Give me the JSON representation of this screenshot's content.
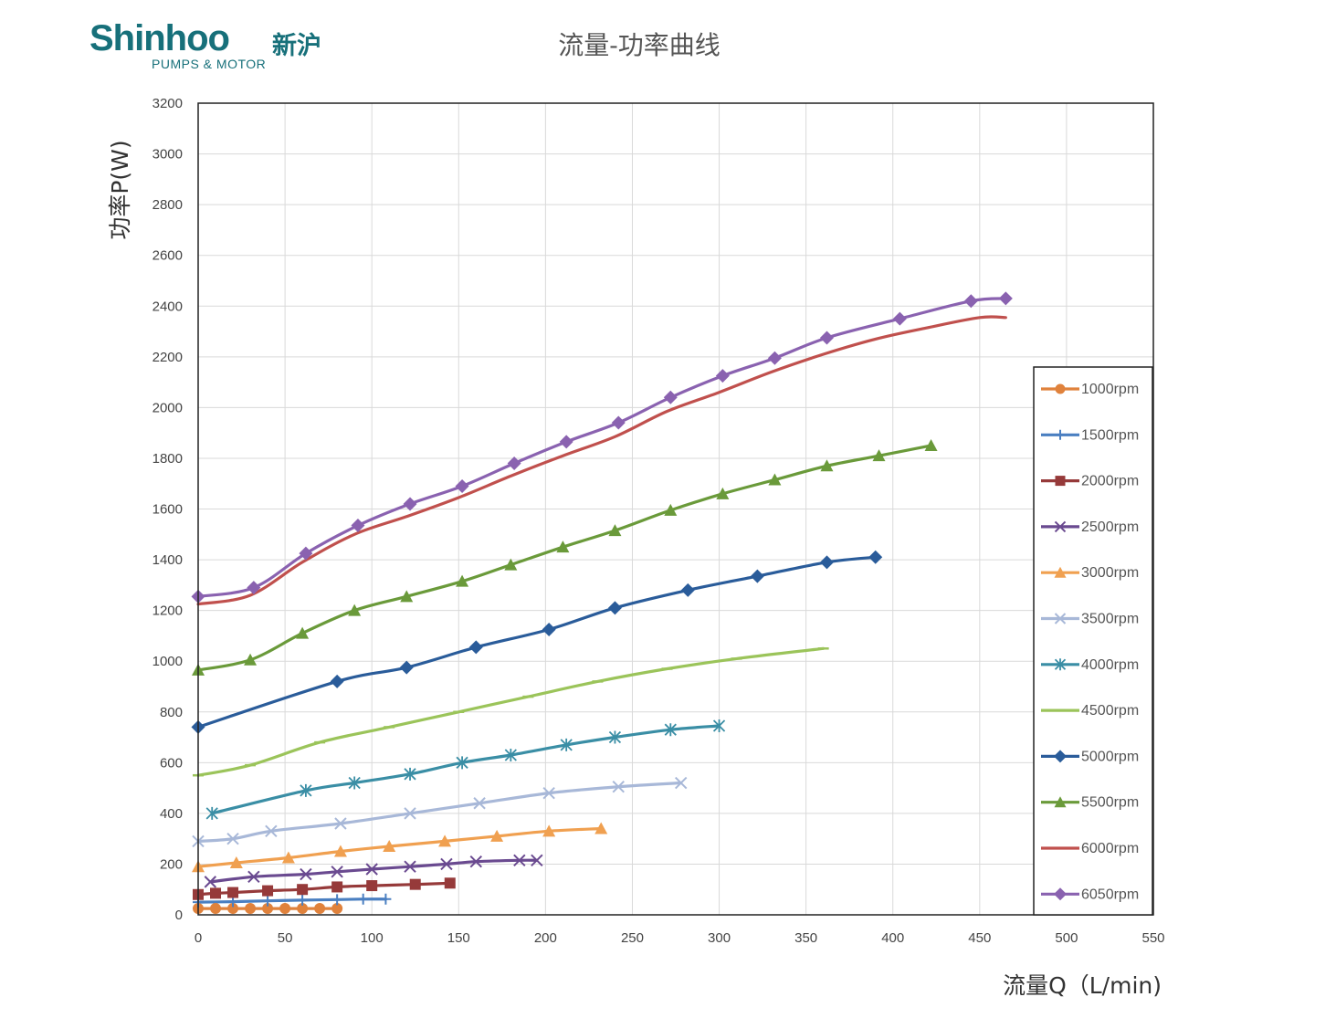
{
  "logo": {
    "brand": "Shinhoo",
    "brand_cn": "新沪",
    "tagline": "PUMPS & MOTOR"
  },
  "chart_data": {
    "type": "line",
    "title": "流量-功率曲线",
    "xlabel": "流量Q（L/min)",
    "ylabel": "功率P(W)",
    "xlim": [
      0,
      550
    ],
    "ylim": [
      0,
      3200
    ],
    "xticks": [
      0,
      50,
      100,
      150,
      200,
      250,
      300,
      350,
      400,
      450,
      500,
      550
    ],
    "yticks": [
      0,
      200,
      400,
      600,
      800,
      1000,
      1200,
      1400,
      1600,
      1800,
      2000,
      2200,
      2400,
      2600,
      2800,
      3000,
      3200
    ],
    "grid": true,
    "legend_position": "right",
    "series": [
      {
        "name": "1000rpm",
        "color": "#e0823c",
        "marker": "circle",
        "x": [
          0,
          10,
          20,
          30,
          40,
          50,
          60,
          70,
          80
        ],
        "y": [
          25,
          25,
          25,
          25,
          25,
          25,
          25,
          25,
          25
        ]
      },
      {
        "name": "1500rpm",
        "color": "#4a7fc1",
        "marker": "plus",
        "x": [
          0,
          20,
          40,
          60,
          80,
          95,
          108
        ],
        "y": [
          50,
          52,
          55,
          58,
          60,
          62,
          62
        ]
      },
      {
        "name": "2000rpm",
        "color": "#963a3a",
        "marker": "square",
        "x": [
          0,
          10,
          20,
          40,
          60,
          80,
          100,
          125,
          145
        ],
        "y": [
          80,
          85,
          88,
          95,
          100,
          110,
          115,
          120,
          125
        ]
      },
      {
        "name": "2500rpm",
        "color": "#6a4a90",
        "marker": "x",
        "x": [
          7,
          32,
          62,
          80,
          100,
          122,
          143,
          160,
          185,
          195
        ],
        "y": [
          130,
          150,
          160,
          170,
          180,
          190,
          200,
          210,
          215,
          215
        ]
      },
      {
        "name": "3000rpm",
        "color": "#f0a050",
        "marker": "triangle",
        "x": [
          0,
          22,
          52,
          82,
          110,
          142,
          172,
          202,
          232
        ],
        "y": [
          190,
          205,
          225,
          250,
          270,
          290,
          310,
          330,
          340
        ]
      },
      {
        "name": "3500rpm",
        "color": "#a8b8d8",
        "marker": "x",
        "x": [
          0,
          20,
          42,
          82,
          122,
          162,
          202,
          242,
          278
        ],
        "y": [
          290,
          300,
          330,
          360,
          400,
          440,
          480,
          505,
          520
        ]
      },
      {
        "name": "4000rpm",
        "color": "#3a8ea5",
        "marker": "asterisk",
        "x": [
          8,
          62,
          90,
          122,
          152,
          180,
          212,
          240,
          272,
          300
        ],
        "y": [
          400,
          490,
          520,
          555,
          600,
          630,
          670,
          700,
          730,
          745
        ]
      },
      {
        "name": "4500rpm",
        "color": "#9bc45a",
        "marker": "dash",
        "x": [
          0,
          30,
          70,
          110,
          150,
          190,
          230,
          270,
          310,
          360
        ],
        "y": [
          550,
          590,
          680,
          740,
          800,
          860,
          920,
          970,
          1010,
          1050
        ]
      },
      {
        "name": "5000rpm",
        "color": "#2a5c9a",
        "marker": "diamond",
        "x": [
          0,
          80,
          120,
          160,
          202,
          240,
          282,
          322,
          362,
          390
        ],
        "y": [
          740,
          920,
          975,
          1055,
          1125,
          1210,
          1280,
          1335,
          1390,
          1410
        ]
      },
      {
        "name": "5500rpm",
        "color": "#6a9a3a",
        "marker": "triangle",
        "x": [
          0,
          30,
          60,
          90,
          120,
          152,
          180,
          210,
          240,
          272,
          302,
          332,
          362,
          392,
          422
        ],
        "y": [
          965,
          1005,
          1110,
          1200,
          1255,
          1315,
          1380,
          1450,
          1515,
          1595,
          1660,
          1715,
          1770,
          1810,
          1850
        ]
      },
      {
        "name": "6000rpm",
        "color": "#c0504d",
        "marker": "none",
        "x": [
          0,
          30,
          60,
          90,
          120,
          150,
          180,
          210,
          240,
          270,
          300,
          330,
          360,
          390,
          420,
          450,
          465
        ],
        "y": [
          1225,
          1260,
          1390,
          1500,
          1570,
          1645,
          1730,
          1810,
          1885,
          1985,
          2060,
          2140,
          2210,
          2270,
          2315,
          2355,
          2355
        ]
      },
      {
        "name": "6050rpm",
        "color": "#8a62b0",
        "marker": "diamond",
        "x": [
          0,
          32,
          62,
          92,
          122,
          152,
          182,
          212,
          242,
          272,
          302,
          332,
          362,
          404,
          445,
          465
        ],
        "y": [
          1255,
          1290,
          1425,
          1535,
          1620,
          1690,
          1780,
          1865,
          1940,
          2040,
          2125,
          2195,
          2275,
          2350,
          2420,
          2430
        ]
      }
    ]
  }
}
